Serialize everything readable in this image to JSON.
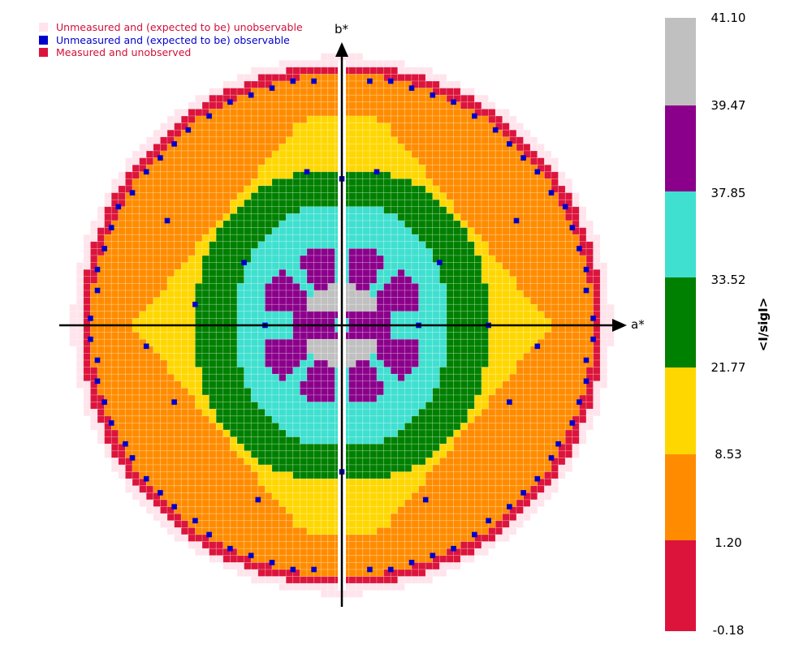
{
  "legend": {
    "items": [
      {
        "label": "Unmeasured and (expected to be) unobservable",
        "color": "#ffe4ec",
        "text_color": "#d0103a"
      },
      {
        "label": "Unmeasured and (expected to be) observable",
        "color": "#0000cd",
        "text_color": "#0000cd"
      },
      {
        "label": "Measured and unobserved",
        "color": "#dc143c",
        "text_color": "#d0103a"
      }
    ]
  },
  "chart_data": {
    "type": "heatmap",
    "title": "",
    "xlabel": "a*",
    "ylabel": "b*",
    "colorbar": {
      "label": "<I/sigI>",
      "ticks": [
        "41.10",
        "39.47",
        "37.85",
        "33.52",
        "21.77",
        "8.53",
        "1.20",
        "-0.18"
      ],
      "bins": [
        {
          "min": -0.18,
          "max": 1.2,
          "color": "#dc143c"
        },
        {
          "min": 1.2,
          "max": 8.53,
          "color": "#ff8c00"
        },
        {
          "min": 8.53,
          "max": 21.77,
          "color": "#ffd700"
        },
        {
          "min": 21.77,
          "max": 33.52,
          "color": "#008000"
        },
        {
          "min": 33.52,
          "max": 37.85,
          "color": "#40e0d0"
        },
        {
          "min": 37.85,
          "max": 39.47,
          "color": "#8b008b"
        },
        {
          "min": 39.47,
          "max": 41.1,
          "color": "#c0c0c0"
        }
      ]
    },
    "grid": false,
    "missing_wedge": "vertical strip along b* axis"
  }
}
